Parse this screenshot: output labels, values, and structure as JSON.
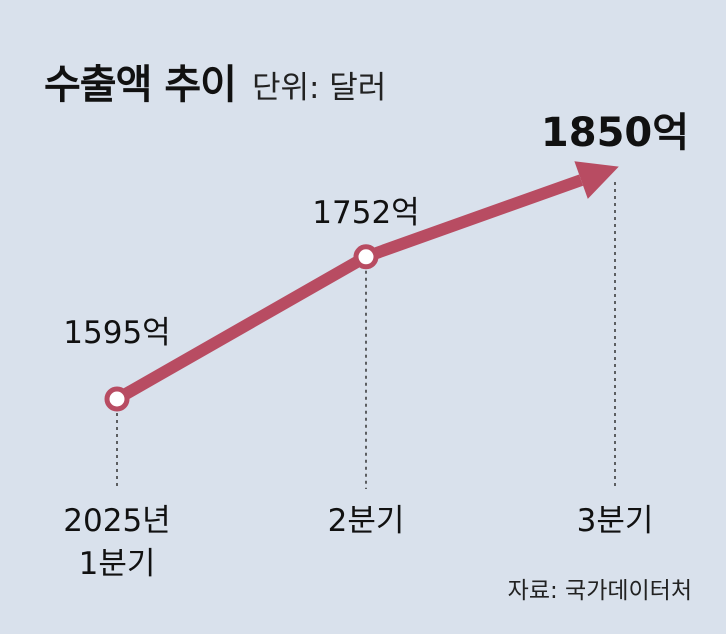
{
  "header": {
    "title": "수출액 추이",
    "unit": "단위: 달러"
  },
  "source": "자료: 국가데이터처",
  "colors": {
    "line": "#b84c62",
    "background": "#d9e1ec",
    "marker_fill": "#ffffff"
  },
  "chart_data": {
    "type": "line",
    "title": "수출액 추이",
    "categories": [
      [
        "2025년",
        "1분기"
      ],
      [
        "2분기"
      ],
      [
        "3분기"
      ]
    ],
    "values": [
      1595,
      1752,
      1850
    ],
    "value_labels": [
      "1595억",
      "1752억",
      "1850억"
    ],
    "xlabel": "",
    "ylabel": "",
    "grid": false
  }
}
